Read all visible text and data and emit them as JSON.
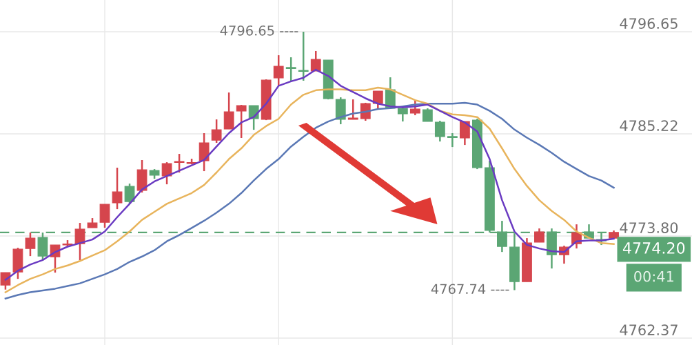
{
  "chart_data": {
    "type": "candlestick",
    "categories": [
      null,
      null,
      null,
      null,
      null,
      null,
      null,
      null,
      null,
      null,
      null,
      null,
      null,
      null,
      null,
      null,
      null,
      null,
      null,
      null,
      null,
      null,
      null,
      null,
      null,
      null,
      null,
      null,
      null,
      null,
      null,
      null,
      null,
      null,
      null,
      null,
      null,
      null,
      null,
      null,
      null,
      null,
      null,
      null,
      null,
      null,
      null,
      null,
      null,
      null
    ],
    "ohlc": [
      [
        4768.31,
        4769.7,
        4767.8,
        4769.7
      ],
      [
        4769.77,
        4772.48,
        4769.0,
        4772.32
      ],
      [
        4772.4,
        4774.18,
        4771.55,
        4773.56
      ],
      [
        4773.64,
        4774.18,
        4771.16,
        4771.55
      ],
      [
        4771.47,
        4772.79,
        4769.7,
        4772.79
      ],
      [
        4772.79,
        4773.33,
        4772.63,
        4772.86
      ],
      [
        4772.94,
        4775.26,
        4771.09,
        4774.56
      ],
      [
        4774.72,
        4775.8,
        4774.72,
        4775.26
      ],
      [
        4775.33,
        4777.34,
        4774.72,
        4777.34
      ],
      [
        4777.5,
        4781.44,
        4776.8,
        4778.73
      ],
      [
        4779.35,
        4779.66,
        4777.42,
        4777.65
      ],
      [
        4778.89,
        4782.29,
        4778.66,
        4781.2
      ],
      [
        4781.13,
        4781.28,
        4780.2,
        4780.59
      ],
      [
        4780.51,
        4782.05,
        4779.58,
        4781.9
      ],
      [
        4782.02,
        4782.98,
        4780.9,
        4782.05
      ],
      [
        4781.9,
        4782.44,
        4781.82,
        4781.98
      ],
      [
        4782.21,
        4785.3,
        4781.05,
        4784.22
      ],
      [
        4784.52,
        4786.84,
        4784.22,
        4785.68
      ],
      [
        4785.76,
        4789.85,
        4785.76,
        4787.69
      ],
      [
        4787.77,
        4788.46,
        4784.76,
        4788.39
      ],
      [
        4788.39,
        4788.39,
        4785.68,
        4786.92
      ],
      [
        4786.84,
        4791.32,
        4786.76,
        4791.24
      ],
      [
        4791.48,
        4794.02,
        4790.63,
        4792.79
      ],
      [
        4792.6,
        4793.79,
        4791.09,
        4792.52
      ],
      [
        4792.29,
        4796.65,
        4791.17,
        4792.21
      ],
      [
        4792.25,
        4794.49,
        4792.25,
        4793.56
      ],
      [
        4793.48,
        4793.48,
        4789.08,
        4789.16
      ],
      [
        4789.08,
        4789.31,
        4786.3,
        4786.84
      ],
      [
        4786.84,
        4789.08,
        4786.84,
        4787.0
      ],
      [
        4786.92,
        4788.7,
        4786.69,
        4788.62
      ],
      [
        4788.62,
        4790.01,
        4788.08,
        4790.01
      ],
      [
        4790.16,
        4791.55,
        4788.0,
        4788.08
      ],
      [
        4788.08,
        4788.23,
        4786.61,
        4787.46
      ],
      [
        4787.54,
        4788.93,
        4787.31,
        4788.0
      ],
      [
        4787.92,
        4788.08,
        4786.61,
        4786.61
      ],
      [
        4786.53,
        4786.69,
        4784.37,
        4784.91
      ],
      [
        4784.87,
        4785.3,
        4783.75,
        4784.8
      ],
      [
        4784.76,
        4786.61,
        4783.98,
        4786.61
      ],
      [
        4786.76,
        4786.92,
        4781.28,
        4781.44
      ],
      [
        4781.44,
        4782.21,
        4774.18,
        4774.41
      ],
      [
        4774.25,
        4775.49,
        4772.01,
        4772.63
      ],
      [
        4772.55,
        4774.1,
        4767.74,
        4768.69
      ],
      [
        4768.69,
        4773.56,
        4768.69,
        4773.02
      ],
      [
        4773.1,
        4774.64,
        4773.1,
        4774.25
      ],
      [
        4774.25,
        4774.64,
        4770.16,
        4771.7
      ],
      [
        4771.7,
        4772.71,
        4770.7,
        4772.55
      ],
      [
        4772.94,
        4775.1,
        4772.4,
        4774.18
      ],
      [
        4774.25,
        4775.1,
        4773.56,
        4773.56
      ],
      [
        4773.4,
        4774.18,
        4772.79,
        4773.25
      ],
      [
        4773.56,
        4774.41,
        4773.56,
        4774.2
      ]
    ],
    "colors": [
      "#d5454d",
      "#d5454d",
      "#d5454d",
      "#5ba674",
      "#d5454d",
      "#d5454d",
      "#d5454d",
      "#d5454d",
      "#d5454d",
      "#d5454d",
      "#5ba674",
      "#d5454d",
      "#5ba674",
      "#d5454d",
      "#d5454d",
      "#d5454d",
      "#d5454d",
      "#d5454d",
      "#d5454d",
      "#d5454d",
      "#5ba674",
      "#d5454d",
      "#d5454d",
      "#5ba674",
      "#5ba674",
      "#d5454d",
      "#5ba674",
      "#5ba674",
      "#d5454d",
      "#d5454d",
      "#d5454d",
      "#5ba674",
      "#5ba674",
      "#d5454d",
      "#5ba674",
      "#5ba674",
      "#5ba674",
      "#d5454d",
      "#5ba674",
      "#5ba674",
      "#5ba674",
      "#5ba674",
      "#d5454d",
      "#d5454d",
      "#5ba674",
      "#d5454d",
      "#d5454d",
      "#5ba674",
      "#5ba674",
      "#d5454d"
    ],
    "series": [
      {
        "type": "line",
        "color": "#5a78b5",
        "values": [
          4766.8,
          4767.2,
          4767.5,
          4767.7,
          4767.9,
          4768.2,
          4768.5,
          4769.0,
          4769.5,
          4770.1,
          4770.9,
          4771.5,
          4772.2,
          4773.2,
          4773.9,
          4774.7,
          4775.5,
          4776.4,
          4777.4,
          4778.6,
          4780.0,
          4781.3,
          4782.4,
          4783.8,
          4784.9,
          4785.9,
          4786.6,
          4787.1,
          4787.5,
          4787.7,
          4788.0,
          4788.1,
          4788.3,
          4788.5,
          4788.6,
          4788.6,
          4788.6,
          4788.7,
          4788.5,
          4787.8,
          4786.9,
          4785.7,
          4784.8,
          4784.0,
          4783.1,
          4782.1,
          4781.3,
          4780.5,
          4780.0,
          4779.2
        ]
      },
      {
        "type": "line",
        "color": "#e8b45c",
        "values": [
          4767.5,
          4768.3,
          4769.0,
          4769.5,
          4770.1,
          4770.5,
          4771.0,
          4771.6,
          4772.2,
          4773.2,
          4774.3,
          4775.6,
          4776.5,
          4777.4,
          4778.0,
          4778.6,
          4779.5,
          4780.9,
          4782.4,
          4783.6,
          4785.1,
          4786.1,
          4786.9,
          4788.5,
          4789.6,
          4790.1,
          4790.2,
          4790.2,
          4790.1,
          4790.1,
          4790.4,
          4790.2,
          4789.6,
          4789.0,
          4788.6,
          4787.8,
          4787.4,
          4787.3,
          4787.1,
          4785.8,
          4783.6,
          4781.3,
          4779.4,
          4777.8,
          4776.6,
          4775.6,
          4774.3,
          4773.6,
          4773.0,
          4772.9
        ]
      },
      {
        "type": "line",
        "color": "#6a3bc2",
        "values": [
          4768.9,
          4769.9,
          4770.6,
          4771.1,
          4772.0,
          4772.6,
          4773.0,
          4773.4,
          4774.3,
          4775.9,
          4777.4,
          4779.0,
          4779.9,
          4780.5,
          4781.1,
          4781.7,
          4782.3,
          4783.8,
          4785.3,
          4786.5,
          4787.1,
          4788.6,
          4790.6,
          4791.1,
          4791.5,
          4792.4,
          4791.7,
          4790.6,
          4789.9,
          4789.2,
          4788.6,
          4788.3,
          4788.2,
          4788.3,
          4788.5,
          4787.8,
          4787.1,
          4786.5,
          4785.5,
          4782.4,
          4777.8,
          4774.3,
          4772.8,
          4772.4,
          4772.1,
          4772.0,
          4773.2,
          4773.3,
          4773.3,
          4773.5
        ]
      }
    ],
    "ylim": [
      4761.6,
      4800.2
    ],
    "yticks": [
      {
        "value": 4762.37,
        "label": "4762.37"
      },
      {
        "value": 4773.8,
        "label": "4773.80"
      },
      {
        "value": 4785.22,
        "label": "4785.22"
      },
      {
        "value": 4796.65,
        "label": "4796.65"
      }
    ],
    "tick_labels": "y",
    "grid": true,
    "ref_lines": [
      {
        "axis": "y",
        "value": 4774.2,
        "label": "4774.20",
        "color": "#5ba674",
        "line_style": "dashed"
      }
    ],
    "annotations": [
      "4796.65 ----",
      "4767.74 ----",
      "00:41"
    ]
  }
}
